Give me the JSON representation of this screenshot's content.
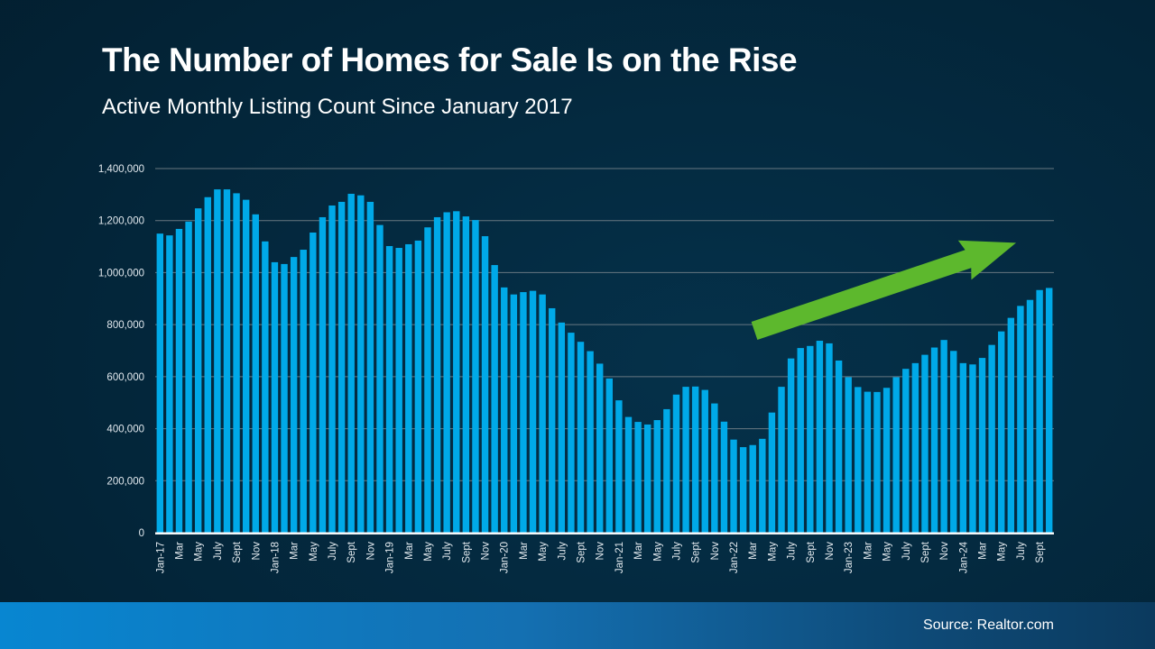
{
  "header": {
    "title": "The Number of Homes for Sale Is on the Rise",
    "subtitle": "Active Monthly Listing Count Since January 2017"
  },
  "footer": {
    "source": "Source: Realtor.com"
  },
  "chart_data": {
    "type": "bar",
    "title": "The Number of Homes for Sale Is on the Rise",
    "subtitle": "Active Monthly Listing Count Since January 2017",
    "series_name": "Active monthly listing count",
    "frequency": "monthly",
    "start_month": "Jan-2017",
    "end_month": "Oct-2024",
    "ylim": [
      0,
      1400000
    ],
    "grid": true,
    "bar_color": "#00a9e8",
    "arrow_color": "#5db82d",
    "grid_color": "#7a858c",
    "axis_line_color": "#ffffff",
    "tick_label_color": "#e2e9ee",
    "y_ticks": [
      {
        "label": "1,400,000",
        "value": 1400000
      },
      {
        "label": "1,200,000",
        "value": 1200000
      },
      {
        "label": "1,000,000",
        "value": 1000000
      },
      {
        "label": "800,000",
        "value": 800000
      },
      {
        "label": "600,000",
        "value": 600000
      },
      {
        "label": "400,000",
        "value": 400000
      },
      {
        "label": "200,000",
        "value": 200000
      },
      {
        "label": "0",
        "value": 0
      }
    ],
    "x_tick_labels": [
      "Jan-17",
      "Mar",
      "May",
      "July",
      "Sept",
      "Nov",
      "Jan-18",
      "Mar",
      "May",
      "July",
      "Sept",
      "Nov",
      "Jan-19",
      "Mar",
      "May",
      "July",
      "Sept",
      "Nov",
      "Jan-20",
      "Mar",
      "May",
      "July",
      "Sept",
      "Nov",
      "Jan-21",
      "Mar",
      "May",
      "July",
      "Sept",
      "Nov",
      "Jan-22",
      "Mar",
      "May",
      "July",
      "Sept",
      "Nov",
      "Jan-23",
      "Mar",
      "May",
      "July",
      "Sept",
      "Nov",
      "Jan-24",
      "Mar",
      "May",
      "July",
      "Sept"
    ],
    "x_tick_every_n_bars": 2,
    "values": [
      1150000,
      1143000,
      1168000,
      1196000,
      1247000,
      1290000,
      1320000,
      1320000,
      1305000,
      1280000,
      1224000,
      1120000,
      1040000,
      1033000,
      1060000,
      1088000,
      1154000,
      1213000,
      1258000,
      1272000,
      1303000,
      1297000,
      1272000,
      1183000,
      1102000,
      1095000,
      1109000,
      1123000,
      1174000,
      1213000,
      1232000,
      1236000,
      1216000,
      1202000,
      1140000,
      1029000,
      943000,
      916000,
      925000,
      930000,
      916000,
      863000,
      808000,
      769000,
      734000,
      698000,
      650000,
      593000,
      509000,
      445000,
      426000,
      416000,
      433000,
      475000,
      531000,
      561000,
      562000,
      549000,
      497000,
      427000,
      358000,
      329000,
      337000,
      361000,
      462000,
      561000,
      670000,
      710000,
      718000,
      738000,
      728000,
      662000,
      598000,
      560000,
      542000,
      541000,
      557000,
      598000,
      630000,
      652000,
      684000,
      712000,
      741000,
      699000,
      652000,
      647000,
      672000,
      722000,
      774000,
      826000,
      872000,
      895000,
      933000,
      941000
    ],
    "annotation": {
      "shape": "upward-trend-arrow",
      "color": "#5db82d"
    },
    "legend": "none"
  }
}
